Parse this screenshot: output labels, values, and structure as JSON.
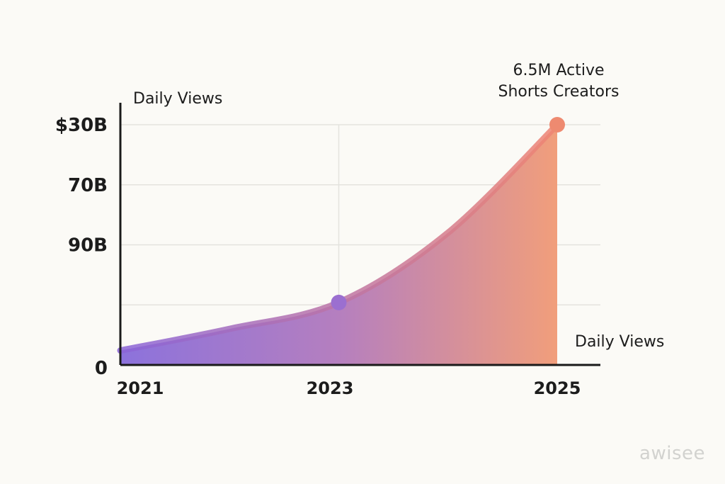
{
  "chart_data": {
    "type": "area",
    "ylabel": "Daily Views",
    "xlabel": "Daily Views",
    "x_ticks": [
      "2021",
      "2023",
      "2025"
    ],
    "y_ticks": [
      "0",
      "",
      "90B",
      "70B",
      "$30B"
    ],
    "x": [
      2021,
      2022,
      2023,
      2024,
      2025
    ],
    "y_fraction": [
      0.06,
      0.15,
      0.26,
      0.55,
      1.0
    ],
    "markers": [
      {
        "x": 2023,
        "y_fraction": 0.26,
        "color": "#9b6fd0"
      },
      {
        "x": 2025,
        "y_fraction": 1.0,
        "color": "#ee8a70"
      }
    ],
    "annotation": {
      "lines": [
        "6.5M Active",
        "Shorts Creators"
      ],
      "x": 2025
    },
    "grid": true,
    "colors": {
      "gradient_start": "#8c72dc",
      "gradient_mid": "#b57fbf",
      "gradient_end": "#f19e7b",
      "line_start": "#8a64d8",
      "line_end": "#ef8472",
      "axis": "#1a1a1a",
      "grid": "#e4e3de"
    }
  },
  "watermark": "awisee"
}
